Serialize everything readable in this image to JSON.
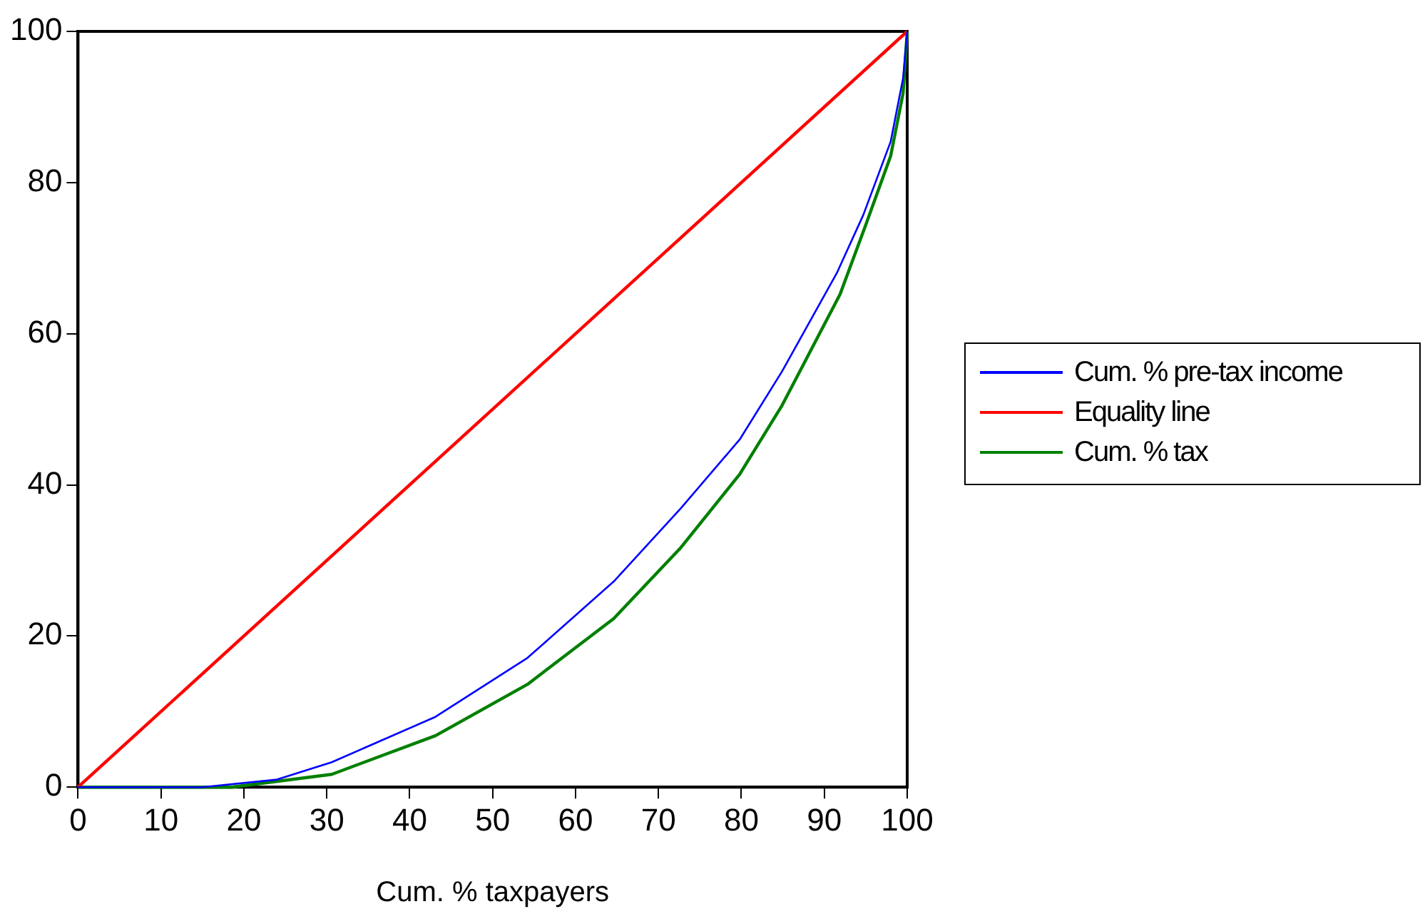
{
  "chart_data": {
    "type": "line",
    "xlabel": "Cum. % taxpayers",
    "series": [
      {
        "name": "Cum. % pre-tax income",
        "color": "#0000ff",
        "x": [
          0,
          15,
          24,
          30.6,
          43.1,
          54.2,
          64.6,
          72.7,
          79.8,
          84.9,
          91.5,
          94.7,
          98,
          99.5,
          100
        ],
        "values": [
          0,
          0,
          1,
          3.3,
          9.3,
          17.1,
          27.2,
          36.9,
          46,
          55,
          68,
          75.7,
          85.4,
          93.8,
          100
        ]
      },
      {
        "name": "Equality line",
        "color": "#ff0000",
        "x": [
          0,
          100
        ],
        "values": [
          0,
          100
        ]
      },
      {
        "name": "Cum. % tax",
        "color": "#008000",
        "x": [
          0,
          18.5,
          30.6,
          43.1,
          54.2,
          64.6,
          72.7,
          79.8,
          84.9,
          91.9,
          95,
          98,
          99.5,
          100
        ],
        "values": [
          0,
          0,
          1.7,
          6.8,
          13.6,
          22.3,
          31.7,
          41.4,
          50.5,
          65.2,
          74.4,
          83.5,
          91.8,
          100
        ]
      }
    ],
    "xlim": [
      0,
      100
    ],
    "xticks": [
      0,
      10,
      20,
      30,
      40,
      50,
      60,
      70,
      80,
      90,
      100
    ],
    "ylim": [
      0,
      100
    ],
    "yticks": [
      0,
      20,
      40,
      60,
      80,
      100
    ],
    "grid": false,
    "legend": "right",
    "marker": "none",
    "line_style": "solid"
  }
}
